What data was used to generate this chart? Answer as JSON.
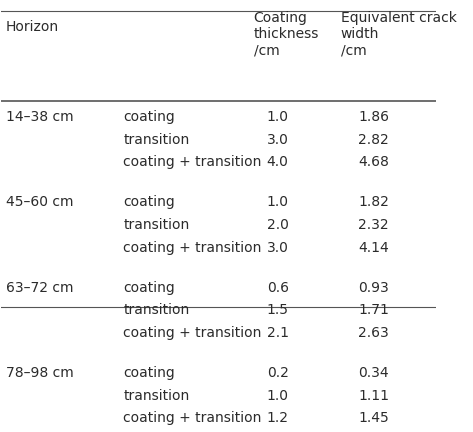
{
  "col_headers": [
    "Horizon",
    "",
    "Coating thickness\n/cm",
    "Equivalent crack\nwidth\n/cm"
  ],
  "horizons": [
    "14–38 cm",
    "45–60 cm",
    "63–72 cm",
    "78–98 cm"
  ],
  "material_types": [
    "coating",
    "transition",
    "coating + transition"
  ],
  "data": [
    [
      [
        "1.0",
        "1.86"
      ],
      [
        "3.0",
        "2.82"
      ],
      [
        "4.0",
        "4.68"
      ]
    ],
    [
      [
        "1.0",
        "1.82"
      ],
      [
        "2.0",
        "2.32"
      ],
      [
        "3.0",
        "4.14"
      ]
    ],
    [
      [
        "0.6",
        "0.93"
      ],
      [
        "1.5",
        "1.71"
      ],
      [
        "2.1",
        "2.63"
      ]
    ],
    [
      [
        "0.2",
        "0.34"
      ],
      [
        "1.0",
        "1.11"
      ],
      [
        "1.2",
        "1.45"
      ]
    ]
  ],
  "bg_color": "#ffffff",
  "text_color": "#2b2b2b",
  "line_color": "#555555",
  "font_size": 10,
  "header_font_size": 10
}
